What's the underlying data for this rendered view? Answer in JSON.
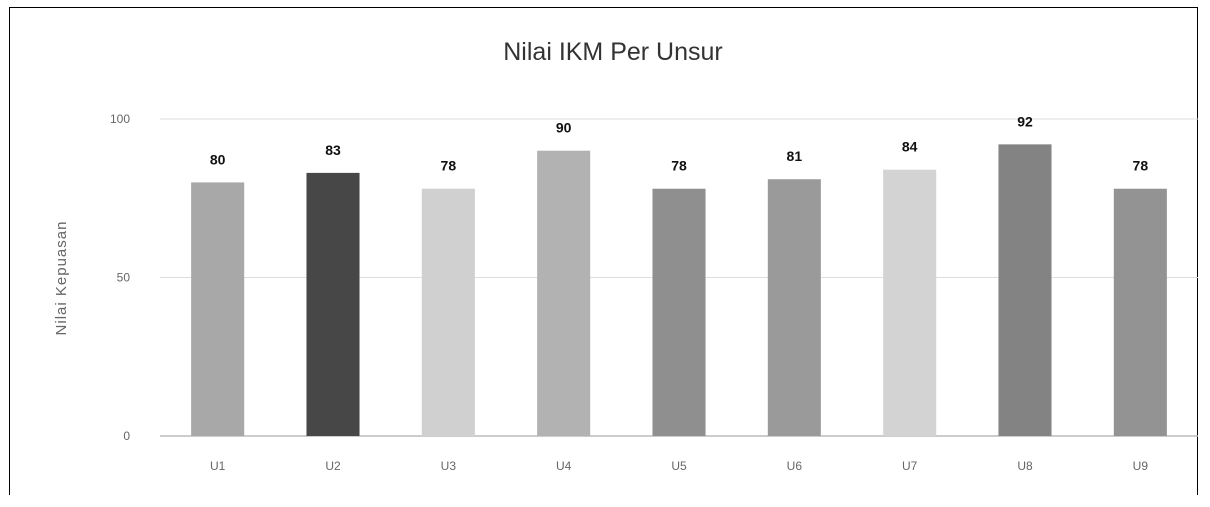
{
  "chart_data": {
    "type": "bar",
    "title": "Nilai IKM Per Unsur",
    "ylabel": "Nilai Kepuasan",
    "xlabel": "",
    "ylim": [
      0,
      100
    ],
    "yticks": [
      "0",
      "50",
      "100"
    ],
    "grid": true,
    "categories": [
      "U1",
      "U2",
      "U3",
      "U4",
      "U5",
      "U6",
      "U7",
      "U8",
      "U9"
    ],
    "values": [
      80,
      83,
      78,
      90,
      78,
      81,
      84,
      92,
      78
    ],
    "data_labels": [
      "80",
      "83",
      "78",
      "90",
      "78",
      "81",
      "84",
      "92",
      "78"
    ],
    "colors": [
      "#a8a8a8",
      "#474747",
      "#d0d0d0",
      "#b2b2b2",
      "#8f8f8f",
      "#9a9a9a",
      "#d3d3d3",
      "#838383",
      "#939393"
    ]
  }
}
